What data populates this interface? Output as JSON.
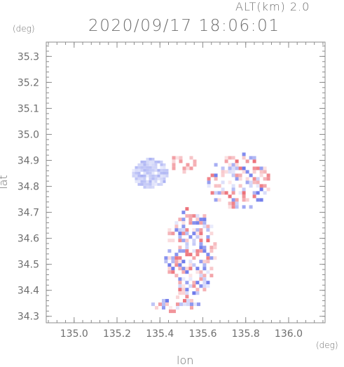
{
  "header": {
    "altitude_label": "ALT(km)  2.0",
    "datetime_label": "2020/09/17 18:06:01"
  },
  "chart_data": {
    "type": "heatmap",
    "title": "2020/09/17 18:06:01",
    "subtitle": "ALT(km)  2.0",
    "xlabel": "lon",
    "ylabel": "lat",
    "x_unit": "(deg)",
    "y_unit": "(deg)",
    "xlim": [
      134.87,
      136.17
    ],
    "ylim": [
      34.275,
      35.355
    ],
    "x_ticks": [
      135.0,
      135.2,
      135.4,
      135.6,
      135.8,
      136.0
    ],
    "x_tick_labels": [
      "135.0",
      "135.2",
      "135.4",
      "135.6",
      "135.8",
      "136.0"
    ],
    "y_ticks": [
      34.3,
      34.4,
      34.5,
      34.6,
      34.7,
      34.8,
      34.9,
      35.0,
      35.1,
      35.2,
      35.3
    ],
    "y_tick_labels": [
      "34.3",
      "34.4",
      "34.5",
      "34.6",
      "34.7",
      "34.8",
      "34.9",
      "35.0",
      "35.1",
      "35.2",
      "35.3"
    ],
    "grid": false,
    "colors": {
      "positive": "#e8505a",
      "negative": "#4b5ae6",
      "axis": "#8c8c8c"
    },
    "regions": [
      {
        "name": "bay-blue-patch",
        "lon": [
          135.27,
          135.43
        ],
        "lat": [
          34.8,
          34.91
        ],
        "sign": "negative"
      },
      {
        "name": "north-red-patch",
        "lon": [
          135.44,
          135.56
        ],
        "lat": [
          34.86,
          34.93
        ],
        "sign": "positive"
      },
      {
        "name": "east-cluster",
        "lon": [
          135.62,
          135.9
        ],
        "lat": [
          34.72,
          34.93
        ],
        "sign": "mixed"
      },
      {
        "name": "central-strip",
        "lon": [
          135.42,
          135.66
        ],
        "lat": [
          34.38,
          34.72
        ],
        "sign": "mixed"
      },
      {
        "name": "south-tail",
        "lon": [
          135.36,
          135.58
        ],
        "lat": [
          34.32,
          34.38
        ],
        "sign": "mixed"
      }
    ]
  }
}
